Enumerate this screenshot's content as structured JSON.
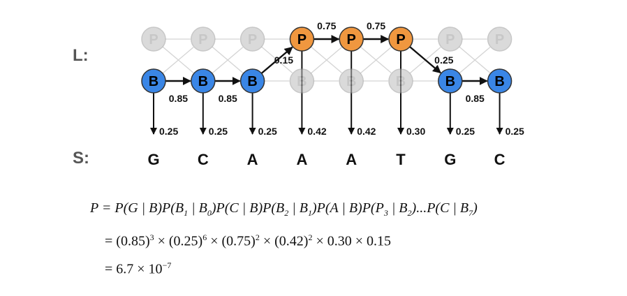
{
  "row_labels": {
    "top": "L:",
    "bottom": "S:"
  },
  "state_letters": {
    "p": "P",
    "b": "B"
  },
  "path": [
    "B",
    "B",
    "B",
    "P",
    "P",
    "P",
    "B",
    "B"
  ],
  "transition_labels": [
    {
      "from": 0,
      "to": 1,
      "text": "0.85"
    },
    {
      "from": 1,
      "to": 2,
      "text": "0.85"
    },
    {
      "from": 2,
      "to": 3,
      "text": "0.15"
    },
    {
      "from": 3,
      "to": 4,
      "text": "0.75"
    },
    {
      "from": 4,
      "to": 5,
      "text": "0.75"
    },
    {
      "from": 5,
      "to": 6,
      "text": "0.25"
    },
    {
      "from": 6,
      "to": 7,
      "text": "0.85"
    }
  ],
  "emissions": [
    "0.25",
    "0.25",
    "0.25",
    "0.42",
    "0.42",
    "0.30",
    "0.25",
    "0.25"
  ],
  "sequence": [
    "G",
    "C",
    "A",
    "A",
    "A",
    "T",
    "G",
    "C"
  ],
  "colors": {
    "b_state": "#3a86e6",
    "p_state": "#f0973f",
    "inactive": "#bdbdbd"
  },
  "equations": {
    "line1": "P = P(G | B)P(B1 | B0)P(C | B)P(B2 | B1)P(A | B)P(P3 | B2)...P(C | B7)",
    "line2": "= (0.85)^3 × (0.25)^6 × (0.75)^2 × (0.42)^2 × 0.30 × 0.15",
    "line3": "= 6.7 × 10^-7"
  }
}
